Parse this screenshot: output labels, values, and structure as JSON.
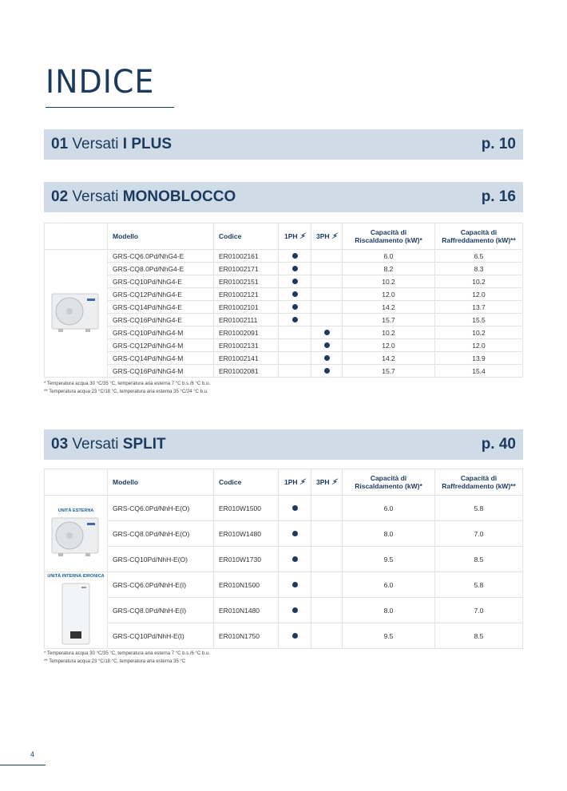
{
  "title": "INDICE",
  "sections": [
    {
      "num": "01",
      "name": "Versati",
      "bold": "I PLUS",
      "page": "p. 10"
    },
    {
      "num": "02",
      "name": "Versati",
      "bold": "MONOBLOCCO",
      "page": "p. 16"
    },
    {
      "num": "03",
      "name": "Versati",
      "bold": "SPLIT",
      "page": "p. 40"
    }
  ],
  "headers": {
    "modello": "Modello",
    "codice": "Codice",
    "ph1": "1PH",
    "ph3": "3PH",
    "risc": "Capacità di Riscaldamento (kW)*",
    "raff": "Capacità di Raffreddamento (kW)**"
  },
  "monoblocco": {
    "rows": [
      {
        "modello": "GRS-CQ6.0Pd/NhG4-E",
        "codice": "ER01002161",
        "ph": "1",
        "risc": "6.0",
        "raff": "6.5"
      },
      {
        "modello": "GRS-CQ8.0Pd/NhG4-E",
        "codice": "ER01002171",
        "ph": "1",
        "risc": "8.2",
        "raff": "8.3"
      },
      {
        "modello": "GRS-CQ10Pd/NhG4-E",
        "codice": "ER01002151",
        "ph": "1",
        "risc": "10.2",
        "raff": "10.2"
      },
      {
        "modello": "GRS-CQ12Pd/NhG4-E",
        "codice": "ER01002121",
        "ph": "1",
        "risc": "12.0",
        "raff": "12.0"
      },
      {
        "modello": "GRS-CQ14Pd/NhG4-E",
        "codice": "ER01002101",
        "ph": "1",
        "risc": "14.2",
        "raff": "13.7"
      },
      {
        "modello": "GRS-CQ16Pd/NhG4-E",
        "codice": "ER01002111",
        "ph": "1",
        "risc": "15.7",
        "raff": "15.5"
      },
      {
        "modello": "GRS-CQ10Pd/NhG4-M",
        "codice": "ER01002091",
        "ph": "3",
        "risc": "10.2",
        "raff": "10.2"
      },
      {
        "modello": "GRS-CQ12Pd/NhG4-M",
        "codice": "ER01002131",
        "ph": "3",
        "risc": "12.0",
        "raff": "12.0"
      },
      {
        "modello": "GRS-CQ14Pd/NhG4-M",
        "codice": "ER01002141",
        "ph": "3",
        "risc": "14.2",
        "raff": "13.9"
      },
      {
        "modello": "GRS-CQ16Pd/NhG4-M",
        "codice": "ER01002081",
        "ph": "3",
        "risc": "15.7",
        "raff": "15.4"
      }
    ],
    "notes": [
      "* Temperatura acqua 30 °C/35 °C, temperatura aria esterna 7 °C b.s./6 °C b.u.",
      "** Temperatura acqua 23 °C/18 °C, temperatura aria esterna 35 °C/24 °C b.u."
    ]
  },
  "split": {
    "group_labels": [
      "UNITÀ ESTERNA",
      "UNITÀ INTERNA IDRONICA"
    ],
    "rows": [
      {
        "modello": "GRS-CQ6.0Pd/NhH-E(O)",
        "codice": "ER010W1500",
        "ph": "1",
        "risc": "6.0",
        "raff": "5.8"
      },
      {
        "modello": "GRS-CQ8.0Pd/NhH-E(O)",
        "codice": "ER010W1480",
        "ph": "1",
        "risc": "8.0",
        "raff": "7.0"
      },
      {
        "modello": "GRS-CQ10Pd/NhH-E(O)",
        "codice": "ER010W1730",
        "ph": "1",
        "risc": "9.5",
        "raff": "8.5"
      },
      {
        "modello": "GRS-CQ6.0Pd/NhH-E(I)",
        "codice": "ER010N1500",
        "ph": "1",
        "risc": "6.0",
        "raff": "5.8"
      },
      {
        "modello": "GRS-CQ8.0Pd/NhH-E(I)",
        "codice": "ER010N1480",
        "ph": "1",
        "risc": "8.0",
        "raff": "7.0"
      },
      {
        "modello": "GRS-CQ10Pd/NhH-E(I)",
        "codice": "ER010N1750",
        "ph": "1",
        "risc": "9.5",
        "raff": "8.5"
      }
    ],
    "notes": [
      "* Temperatura acqua 30 °C/35 °C, temperatura aria esterna 7 °C b.s./6 °C b.u.",
      "** Temperatura acqua 23 °C/18 °C, temperatura aria esterna 35 °C"
    ]
  },
  "page_number": "4",
  "colors": {
    "navy": "#1c3a5e",
    "bar": "#cfdbe6"
  }
}
